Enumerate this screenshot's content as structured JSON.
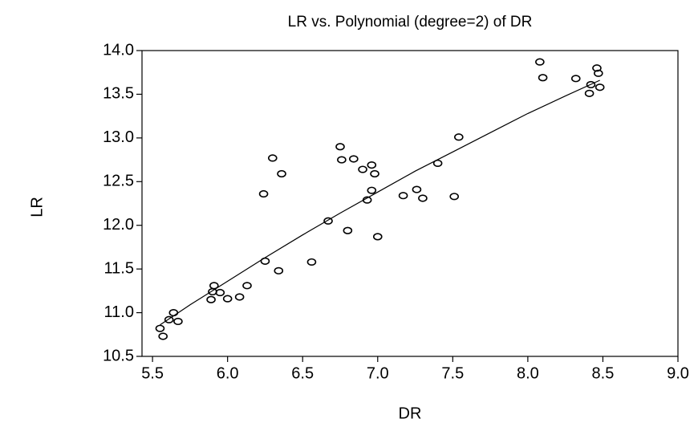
{
  "chart_data": {
    "type": "scatter",
    "title": "LR vs. Polynomial (degree=2) of DR",
    "x_label": "DR",
    "y_label": "LR",
    "x": [
      5.55,
      5.57,
      5.61,
      5.64,
      5.67,
      5.89,
      5.9,
      5.91,
      5.95,
      6.0,
      6.08,
      6.13,
      6.24,
      6.25,
      6.3,
      6.34,
      6.36,
      6.56,
      6.67,
      6.75,
      6.76,
      6.8,
      6.84,
      6.9,
      6.93,
      6.96,
      6.96,
      6.98,
      7.0,
      7.17,
      7.26,
      7.3,
      7.4,
      7.51,
      7.54,
      8.08,
      8.1,
      8.32,
      8.42,
      8.41,
      8.46,
      8.47,
      8.48
    ],
    "y": [
      10.82,
      10.73,
      10.92,
      11.0,
      10.9,
      11.15,
      11.24,
      11.31,
      11.23,
      11.16,
      11.18,
      11.31,
      12.36,
      11.59,
      12.77,
      11.48,
      12.59,
      11.58,
      12.05,
      12.9,
      12.75,
      11.94,
      12.76,
      12.64,
      12.29,
      12.69,
      12.4,
      12.59,
      11.87,
      12.34,
      12.41,
      12.31,
      12.71,
      12.33,
      13.01,
      13.87,
      13.69,
      13.68,
      13.61,
      13.51,
      13.8,
      13.74,
      13.58
    ],
    "color": "#000000",
    "fit": {
      "x": [
        5.55,
        5.75,
        6.0,
        6.25,
        6.5,
        6.75,
        7.0,
        7.25,
        7.5,
        7.75,
        8.0,
        8.25,
        8.48
      ],
      "y": [
        10.86,
        11.09,
        11.36,
        11.63,
        11.89,
        12.14,
        12.38,
        12.62,
        12.84,
        13.06,
        13.28,
        13.48,
        13.66
      ]
    },
    "xlim": [
      5.43,
      9.0
    ],
    "ylim": [
      10.5,
      14.0
    ],
    "xticks": [
      {
        "value": 5.5,
        "label": "5.5"
      },
      {
        "value": 6,
        "label": "6.0"
      },
      {
        "value": 6.5,
        "label": "6.5"
      },
      {
        "value": 7,
        "label": "7.0"
      },
      {
        "value": 7.5,
        "label": "7.5"
      },
      {
        "value": 8,
        "label": "8.0"
      },
      {
        "value": 8.5,
        "label": "8.5"
      },
      {
        "value": 9,
        "label": "9.0"
      }
    ],
    "yticks": [
      {
        "value": 10.5,
        "label": "10.5"
      },
      {
        "value": 11,
        "label": "11.0"
      },
      {
        "value": 11.5,
        "label": "11.5"
      },
      {
        "value": 12,
        "label": "12.0"
      },
      {
        "value": 12.5,
        "label": "12.5"
      },
      {
        "value": 13,
        "label": "13.0"
      },
      {
        "value": 13.5,
        "label": "13.5"
      },
      {
        "value": 14,
        "label": "14.0"
      }
    ]
  }
}
